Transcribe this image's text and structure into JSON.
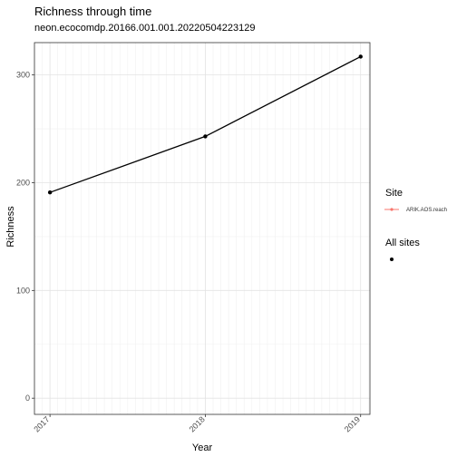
{
  "chart_data": {
    "type": "line",
    "title": "Richness through time",
    "subtitle": "neon.ecocomdp.20166.001.001.20220504223129",
    "xlabel": "Year",
    "ylabel": "Richness",
    "x": [
      2017,
      2018,
      2019
    ],
    "x_tick_labels": [
      "2017",
      "2018",
      "2019"
    ],
    "xlim": [
      2016.9,
      2019.06
    ],
    "ylim": [
      -15,
      330
    ],
    "y_ticks": [
      0,
      100,
      200,
      300
    ],
    "grid": true,
    "legend_position": "right",
    "series": [
      {
        "name": "All sites",
        "values": [
          191,
          243,
          317
        ],
        "color": "#000000"
      }
    ],
    "legends": [
      {
        "title": "Site",
        "entries": [
          {
            "label": "ARIK.AOS.reach",
            "color": "#F8766D"
          }
        ]
      },
      {
        "title": "All sites",
        "entries": [
          {
            "label": "",
            "color": "#000000"
          }
        ]
      }
    ]
  }
}
